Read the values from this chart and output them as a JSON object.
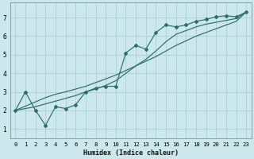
{
  "title": "",
  "xlabel": "Humidex (Indice chaleur)",
  "bg_color": "#cce8ec",
  "grid_color": "#aad0d8",
  "line_color": "#2d6e68",
  "hours": [
    0,
    1,
    2,
    3,
    4,
    5,
    6,
    7,
    8,
    9,
    10,
    11,
    12,
    13,
    14,
    15,
    16,
    17,
    18,
    19,
    20,
    21,
    22,
    23
  ],
  "line_jagged": [
    2.0,
    3.0,
    2.0,
    1.2,
    2.2,
    2.1,
    2.3,
    3.0,
    3.2,
    3.3,
    3.3,
    5.1,
    5.5,
    5.3,
    6.2,
    6.6,
    6.5,
    6.6,
    6.8,
    6.9,
    7.05,
    7.1,
    7.05,
    7.3
  ],
  "line_smooth": [
    2.0,
    2.1,
    2.2,
    2.35,
    2.5,
    2.65,
    2.8,
    3.0,
    3.15,
    3.35,
    3.6,
    4.0,
    4.4,
    4.75,
    5.2,
    5.7,
    6.1,
    6.3,
    6.5,
    6.65,
    6.75,
    6.85,
    6.95,
    7.3
  ],
  "line_straight": [
    2.0,
    2.23,
    2.46,
    2.69,
    2.87,
    3.0,
    3.15,
    3.3,
    3.5,
    3.7,
    3.9,
    4.15,
    4.4,
    4.65,
    4.9,
    5.2,
    5.5,
    5.75,
    6.0,
    6.2,
    6.4,
    6.6,
    6.8,
    7.3
  ],
  "xlim": [
    -0.5,
    23.5
  ],
  "ylim": [
    0.5,
    7.8
  ],
  "xticks": [
    0,
    1,
    2,
    3,
    4,
    5,
    6,
    7,
    8,
    9,
    10,
    11,
    12,
    13,
    14,
    15,
    16,
    17,
    18,
    19,
    20,
    21,
    22,
    23
  ],
  "yticks": [
    1,
    2,
    3,
    4,
    5,
    6,
    7
  ],
  "xlabel_fontsize": 6.0,
  "tick_fontsize": 5.2
}
